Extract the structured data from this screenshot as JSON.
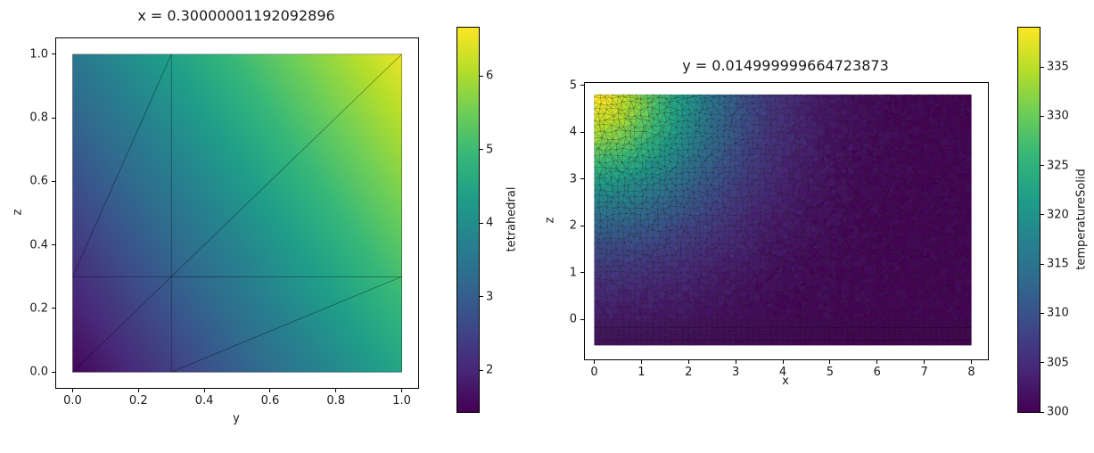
{
  "figure_bg": "#ffffff",
  "colormap": {
    "name": "viridis",
    "stops": [
      "#440154",
      "#482878",
      "#3e4989",
      "#31688e",
      "#26828e",
      "#1f9e89",
      "#35b779",
      "#6ece58",
      "#b5de2b",
      "#fde725"
    ]
  },
  "chart_data": [
    {
      "type": "heatmap",
      "title": "x = 0.30000001192092896",
      "xlabel": "y",
      "ylabel": "z",
      "xlim": [
        -0.05,
        1.05
      ],
      "ylim": [
        -0.05,
        1.05
      ],
      "grid": false,
      "x_ticks": [
        {
          "value": 0.0,
          "label": "0.0"
        },
        {
          "value": 0.2,
          "label": "0.2"
        },
        {
          "value": 0.4,
          "label": "0.4"
        },
        {
          "value": 0.6,
          "label": "0.6"
        },
        {
          "value": 0.8,
          "label": "0.8"
        },
        {
          "value": 1.0,
          "label": "1.0"
        }
      ],
      "y_ticks": [
        {
          "value": 0.0,
          "label": "0.0"
        },
        {
          "value": 0.2,
          "label": "0.2"
        },
        {
          "value": 0.4,
          "label": "0.4"
        },
        {
          "value": 0.6,
          "label": "0.6"
        },
        {
          "value": 0.8,
          "label": "0.8"
        },
        {
          "value": 1.0,
          "label": "1.0"
        }
      ],
      "field": {
        "model": "linear",
        "base": 1.5,
        "coef_x": 3.0,
        "coef_y": 2.0,
        "extent": [
          0,
          1,
          0,
          1
        ],
        "description": "scalar field on slice x=0.3; value ~ 1.5 + 3*y + 2*z, dark purple at (0,0) ~1.5 rising to yellow at (1,1) ~6.5"
      },
      "mesh_segments": [
        [
          0,
          0,
          1,
          1
        ],
        [
          0,
          0.3,
          1,
          0.3
        ],
        [
          0.3,
          0,
          0.3,
          1
        ],
        [
          0,
          0.3,
          0.3,
          1
        ],
        [
          0.3,
          0,
          1,
          0.3
        ]
      ],
      "colorbar": {
        "label": "tetrahedral",
        "vmin": 1.43,
        "vmax": 6.66,
        "ticks": [
          {
            "value": 2,
            "label": "2"
          },
          {
            "value": 3,
            "label": "3"
          },
          {
            "value": 4,
            "label": "4"
          },
          {
            "value": 5,
            "label": "5"
          },
          {
            "value": 6,
            "label": "6"
          }
        ]
      }
    },
    {
      "type": "trimesh-heatmap",
      "title": "y = 0.014999999664723873",
      "xlabel": "x",
      "ylabel": "z",
      "xlim": [
        -0.2,
        8.35
      ],
      "ylim": [
        -0.85,
        5.05
      ],
      "grid": false,
      "x_ticks": [
        {
          "value": 0,
          "label": "0"
        },
        {
          "value": 1,
          "label": "1"
        },
        {
          "value": 2,
          "label": "2"
        },
        {
          "value": 3,
          "label": "3"
        },
        {
          "value": 4,
          "label": "4"
        },
        {
          "value": 5,
          "label": "5"
        },
        {
          "value": 6,
          "label": "6"
        },
        {
          "value": 7,
          "label": "7"
        },
        {
          "value": 8,
          "label": "8"
        }
      ],
      "y_ticks": [
        {
          "value": 0,
          "label": "0"
        },
        {
          "value": 1,
          "label": "1"
        },
        {
          "value": 2,
          "label": "2"
        },
        {
          "value": 3,
          "label": "3"
        },
        {
          "value": 4,
          "label": "4"
        },
        {
          "value": 5,
          "label": "5"
        }
      ],
      "field": {
        "model": "hotspot",
        "base": 300,
        "amplitude": 39,
        "center_x": 0.0,
        "center_z": 4.8,
        "sigma": 2.6,
        "power": 0.8,
        "extent": [
          0,
          8,
          -0.55,
          4.8
        ],
        "cell": 0.125,
        "fine_step": 0.055,
        "fine_top": 0.0,
        "noise": 1.2,
        "description": "dense triangular mesh; temperature ~ 300 + 39*exp(-(((x/2.6)^2+((4.8-z)/2.6)^2)^0.8)); hot (~339, yellow) near top-left corner, ~300 (dark purple) over most of domain; fine boundary-layer mesh band below z=0"
      },
      "colorbar": {
        "label": "temperatureSolid",
        "vmin": 300,
        "vmax": 339,
        "ticks": [
          {
            "value": 300,
            "label": "300"
          },
          {
            "value": 305,
            "label": "305"
          },
          {
            "value": 310,
            "label": "310"
          },
          {
            "value": 315,
            "label": "315"
          },
          {
            "value": 320,
            "label": "320"
          },
          {
            "value": 325,
            "label": "325"
          },
          {
            "value": 330,
            "label": "330"
          },
          {
            "value": 335,
            "label": "335"
          }
        ]
      }
    }
  ]
}
